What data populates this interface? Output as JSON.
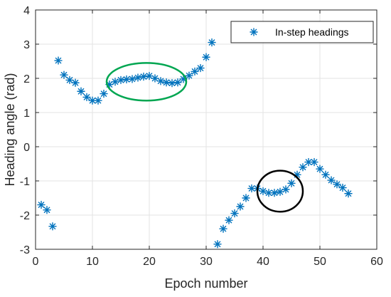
{
  "chart_data": {
    "type": "scatter",
    "xlabel": "Epoch number",
    "ylabel": "Heading angle (rad)",
    "xlim": [
      0,
      60
    ],
    "ylim": [
      -3,
      4
    ],
    "xticks": [
      "0",
      "10",
      "20",
      "30",
      "40",
      "50",
      "60"
    ],
    "yticks": [
      "-3",
      "-2",
      "-1",
      "0",
      "1",
      "2",
      "3",
      "4"
    ],
    "grid": true,
    "legend_position": "top-right",
    "marker": "asterisk",
    "series_color": "#0072BD",
    "series": [
      {
        "name": "In-step headings",
        "x": [
          1,
          2,
          3,
          4,
          5,
          6,
          7,
          8,
          9,
          10,
          11,
          12,
          13,
          14,
          15,
          16,
          17,
          18,
          19,
          20,
          21,
          22,
          23,
          24,
          25,
          26,
          27,
          28,
          29,
          30,
          31,
          32,
          33,
          34,
          35,
          36,
          37,
          38,
          39,
          40,
          41,
          42,
          43,
          44,
          45,
          46,
          47,
          48,
          49,
          50,
          51,
          52,
          53,
          54,
          55
        ],
        "y": [
          -1.7,
          -1.85,
          -2.33,
          2.52,
          2.1,
          1.95,
          1.87,
          1.62,
          1.45,
          1.35,
          1.35,
          1.55,
          1.82,
          1.9,
          1.95,
          1.97,
          1.98,
          2.02,
          2.05,
          2.07,
          2.0,
          1.92,
          1.88,
          1.86,
          1.88,
          1.98,
          2.08,
          2.2,
          2.3,
          2.62,
          3.05,
          -2.85,
          -2.4,
          -2.15,
          -1.95,
          -1.75,
          -1.5,
          -1.22,
          -1.22,
          -1.3,
          -1.35,
          -1.35,
          -1.32,
          -1.25,
          -1.07,
          -0.82,
          -0.6,
          -0.45,
          -0.45,
          -0.65,
          -0.82,
          -0.98,
          -1.1,
          -1.2,
          -1.37
        ]
      }
    ],
    "annotations": [
      {
        "shape": "ellipse",
        "color": "#00A651",
        "center": [
          19.5,
          1.9
        ],
        "radii_data": [
          7,
          0.55
        ]
      },
      {
        "shape": "ellipse",
        "color": "#000000",
        "center": [
          43,
          -1.3
        ],
        "radii_data": [
          4,
          0.6
        ]
      }
    ]
  }
}
